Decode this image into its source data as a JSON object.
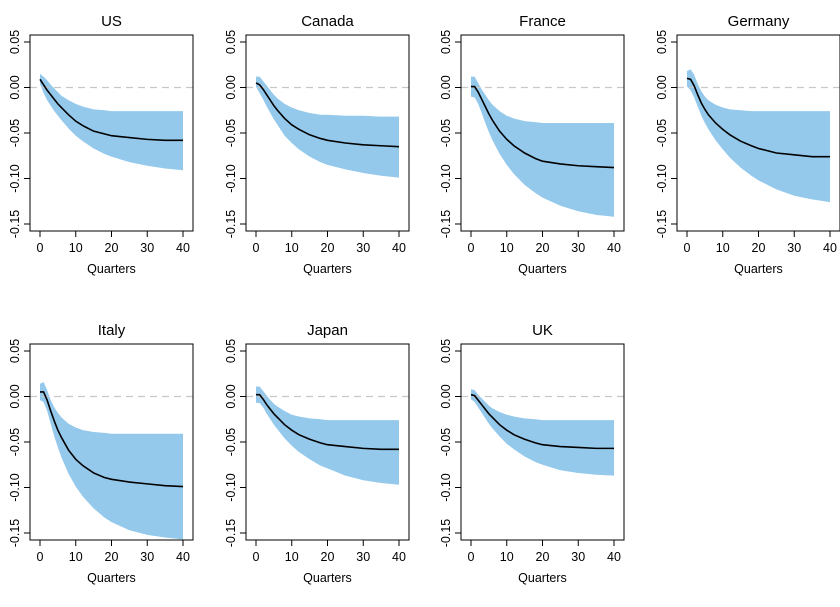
{
  "colors": {
    "band": "#94c9ec",
    "line": "#000000",
    "zero_line": "#c8c8c8",
    "frame": "#000000",
    "background": "#ffffff"
  },
  "chart_data": [
    {
      "type": "area",
      "title": "US",
      "xlabel": "Quarters",
      "ylabel": "",
      "xlim": [
        0,
        40
      ],
      "ylim": [
        -0.15,
        0.05
      ],
      "x_ticks": [
        "0",
        "10",
        "20",
        "30",
        "40"
      ],
      "y_ticks": [
        "-0.15",
        "-0.10",
        "-0.05",
        "0.00",
        "0.05"
      ],
      "zero_line": true,
      "x": [
        0,
        1,
        2,
        3,
        4,
        5,
        6,
        8,
        10,
        12,
        15,
        18,
        20,
        25,
        30,
        35,
        40
      ],
      "series": [
        {
          "role": "median",
          "values": [
            0.009,
            0.003,
            -0.003,
            -0.008,
            -0.013,
            -0.018,
            -0.022,
            -0.03,
            -0.037,
            -0.042,
            -0.048,
            -0.051,
            -0.053,
            -0.055,
            -0.057,
            -0.058,
            -0.058
          ]
        },
        {
          "role": "upper",
          "values": [
            0.015,
            0.012,
            0.008,
            0.003,
            -0.001,
            -0.005,
            -0.009,
            -0.014,
            -0.018,
            -0.021,
            -0.024,
            -0.025,
            -0.026,
            -0.026,
            -0.026,
            -0.026,
            -0.026
          ]
        },
        {
          "role": "lower",
          "values": [
            0.004,
            -0.006,
            -0.014,
            -0.02,
            -0.026,
            -0.031,
            -0.036,
            -0.045,
            -0.053,
            -0.059,
            -0.067,
            -0.073,
            -0.076,
            -0.082,
            -0.086,
            -0.089,
            -0.091
          ]
        }
      ]
    },
    {
      "type": "area",
      "title": "Canada",
      "xlabel": "Quarters",
      "ylabel": "",
      "xlim": [
        0,
        40
      ],
      "ylim": [
        -0.15,
        0.05
      ],
      "x_ticks": [
        "0",
        "10",
        "20",
        "30",
        "40"
      ],
      "y_ticks": [
        "-0.15",
        "-0.10",
        "-0.05",
        "0.00",
        "0.05"
      ],
      "zero_line": true,
      "x": [
        0,
        1,
        2,
        3,
        4,
        5,
        6,
        8,
        10,
        12,
        15,
        18,
        20,
        25,
        30,
        35,
        40
      ],
      "series": [
        {
          "role": "median",
          "values": [
            0.005,
            0.003,
            -0.002,
            -0.008,
            -0.014,
            -0.02,
            -0.025,
            -0.034,
            -0.041,
            -0.046,
            -0.052,
            -0.056,
            -0.058,
            -0.061,
            -0.063,
            -0.064,
            -0.065
          ]
        },
        {
          "role": "upper",
          "values": [
            0.012,
            0.012,
            0.007,
            0.002,
            -0.003,
            -0.008,
            -0.012,
            -0.018,
            -0.022,
            -0.025,
            -0.028,
            -0.03,
            -0.03,
            -0.031,
            -0.031,
            -0.032,
            -0.032
          ]
        },
        {
          "role": "lower",
          "values": [
            0.001,
            -0.006,
            -0.013,
            -0.021,
            -0.028,
            -0.035,
            -0.041,
            -0.053,
            -0.061,
            -0.068,
            -0.076,
            -0.082,
            -0.085,
            -0.09,
            -0.094,
            -0.097,
            -0.099
          ]
        }
      ]
    },
    {
      "type": "area",
      "title": "France",
      "xlabel": "Quarters",
      "ylabel": "",
      "xlim": [
        0,
        40
      ],
      "ylim": [
        -0.15,
        0.05
      ],
      "x_ticks": [
        "0",
        "10",
        "20",
        "30",
        "40"
      ],
      "y_ticks": [
        "-0.15",
        "-0.10",
        "-0.05",
        "0.00",
        "0.05"
      ],
      "zero_line": true,
      "x": [
        0,
        1,
        2,
        3,
        4,
        5,
        6,
        8,
        10,
        12,
        15,
        18,
        20,
        25,
        30,
        35,
        40
      ],
      "series": [
        {
          "role": "median",
          "values": [
            0.001,
            0.001,
            -0.005,
            -0.013,
            -0.021,
            -0.029,
            -0.036,
            -0.048,
            -0.057,
            -0.064,
            -0.072,
            -0.078,
            -0.081,
            -0.084,
            -0.086,
            -0.087,
            -0.088
          ]
        },
        {
          "role": "upper",
          "values": [
            0.012,
            0.012,
            0.005,
            -0.002,
            -0.008,
            -0.014,
            -0.019,
            -0.026,
            -0.031,
            -0.034,
            -0.037,
            -0.038,
            -0.039,
            -0.039,
            -0.039,
            -0.039,
            -0.039
          ]
        },
        {
          "role": "lower",
          "values": [
            -0.01,
            -0.011,
            -0.018,
            -0.028,
            -0.039,
            -0.049,
            -0.058,
            -0.073,
            -0.085,
            -0.095,
            -0.107,
            -0.116,
            -0.121,
            -0.13,
            -0.136,
            -0.14,
            -0.142
          ]
        }
      ]
    },
    {
      "type": "area",
      "title": "Germany",
      "xlabel": "Quarters",
      "ylabel": "",
      "xlim": [
        0,
        40
      ],
      "ylim": [
        -0.15,
        0.05
      ],
      "x_ticks": [
        "0",
        "10",
        "20",
        "30",
        "40"
      ],
      "y_ticks": [
        "-0.15",
        "-0.10",
        "-0.05",
        "0.00",
        "0.05"
      ],
      "zero_line": true,
      "x": [
        0,
        1,
        2,
        3,
        4,
        5,
        6,
        8,
        10,
        12,
        15,
        18,
        20,
        25,
        30,
        35,
        40
      ],
      "series": [
        {
          "role": "median",
          "values": [
            0.01,
            0.009,
            0.002,
            -0.008,
            -0.017,
            -0.024,
            -0.03,
            -0.039,
            -0.046,
            -0.052,
            -0.059,
            -0.064,
            -0.067,
            -0.072,
            -0.074,
            -0.076,
            -0.076
          ]
        },
        {
          "role": "upper",
          "values": [
            0.018,
            0.02,
            0.014,
            0.004,
            -0.004,
            -0.01,
            -0.014,
            -0.019,
            -0.022,
            -0.024,
            -0.025,
            -0.026,
            -0.026,
            -0.026,
            -0.026,
            -0.026,
            -0.026
          ]
        },
        {
          "role": "lower",
          "values": [
            0.001,
            -0.003,
            -0.011,
            -0.021,
            -0.031,
            -0.039,
            -0.046,
            -0.058,
            -0.068,
            -0.077,
            -0.088,
            -0.097,
            -0.102,
            -0.112,
            -0.119,
            -0.123,
            -0.126
          ]
        }
      ]
    },
    {
      "type": "area",
      "title": "Italy",
      "xlabel": "Quarters",
      "ylabel": "",
      "xlim": [
        0,
        40
      ],
      "ylim": [
        -0.15,
        0.05
      ],
      "x_ticks": [
        "0",
        "10",
        "20",
        "30",
        "40"
      ],
      "y_ticks": [
        "-0.15",
        "-0.10",
        "-0.05",
        "0.00",
        "0.05"
      ],
      "zero_line": true,
      "x": [
        0,
        1,
        2,
        3,
        4,
        5,
        6,
        8,
        10,
        12,
        15,
        18,
        20,
        25,
        30,
        35,
        40
      ],
      "series": [
        {
          "role": "median",
          "values": [
            0.005,
            0.005,
            -0.004,
            -0.016,
            -0.027,
            -0.037,
            -0.045,
            -0.059,
            -0.069,
            -0.076,
            -0.084,
            -0.089,
            -0.091,
            -0.094,
            -0.096,
            -0.098,
            -0.099
          ]
        },
        {
          "role": "upper",
          "values": [
            0.014,
            0.016,
            0.007,
            -0.004,
            -0.012,
            -0.018,
            -0.023,
            -0.03,
            -0.034,
            -0.037,
            -0.039,
            -0.04,
            -0.041,
            -0.041,
            -0.041,
            -0.041,
            -0.041
          ]
        },
        {
          "role": "lower",
          "values": [
            -0.004,
            -0.006,
            -0.016,
            -0.03,
            -0.044,
            -0.056,
            -0.067,
            -0.085,
            -0.099,
            -0.11,
            -0.123,
            -0.133,
            -0.138,
            -0.147,
            -0.152,
            -0.155,
            -0.157
          ]
        }
      ]
    },
    {
      "type": "area",
      "title": "Japan",
      "xlabel": "Quarters",
      "ylabel": "",
      "xlim": [
        0,
        40
      ],
      "ylim": [
        -0.15,
        0.05
      ],
      "x_ticks": [
        "0",
        "10",
        "20",
        "30",
        "40"
      ],
      "y_ticks": [
        "-0.15",
        "-0.10",
        "-0.05",
        "0.00",
        "0.05"
      ],
      "zero_line": true,
      "x": [
        0,
        1,
        2,
        3,
        4,
        5,
        6,
        8,
        10,
        12,
        15,
        18,
        20,
        25,
        30,
        35,
        40
      ],
      "series": [
        {
          "role": "median",
          "values": [
            0.002,
            0.002,
            -0.003,
            -0.009,
            -0.014,
            -0.019,
            -0.023,
            -0.031,
            -0.037,
            -0.042,
            -0.047,
            -0.051,
            -0.053,
            -0.055,
            -0.057,
            -0.058,
            -0.058
          ]
        },
        {
          "role": "upper",
          "values": [
            0.011,
            0.011,
            0.006,
            0.001,
            -0.004,
            -0.008,
            -0.011,
            -0.016,
            -0.02,
            -0.022,
            -0.024,
            -0.025,
            -0.026,
            -0.026,
            -0.026,
            -0.026,
            -0.026
          ]
        },
        {
          "role": "lower",
          "values": [
            -0.007,
            -0.007,
            -0.012,
            -0.019,
            -0.025,
            -0.031,
            -0.036,
            -0.046,
            -0.054,
            -0.061,
            -0.069,
            -0.076,
            -0.079,
            -0.087,
            -0.092,
            -0.095,
            -0.097
          ]
        }
      ]
    },
    {
      "type": "area",
      "title": "UK",
      "xlabel": "Quarters",
      "ylabel": "",
      "xlim": [
        0,
        40
      ],
      "ylim": [
        -0.15,
        0.05
      ],
      "x_ticks": [
        "0",
        "10",
        "20",
        "30",
        "40"
      ],
      "y_ticks": [
        "-0.15",
        "-0.10",
        "-0.05",
        "0.00",
        "0.05"
      ],
      "zero_line": true,
      "x": [
        0,
        1,
        2,
        3,
        4,
        5,
        6,
        8,
        10,
        12,
        15,
        18,
        20,
        25,
        30,
        35,
        40
      ],
      "series": [
        {
          "role": "median",
          "values": [
            0.002,
            0.001,
            -0.004,
            -0.009,
            -0.014,
            -0.019,
            -0.023,
            -0.031,
            -0.037,
            -0.042,
            -0.047,
            -0.051,
            -0.053,
            -0.055,
            -0.056,
            -0.057,
            -0.057
          ]
        },
        {
          "role": "upper",
          "values": [
            0.008,
            0.007,
            0.002,
            -0.002,
            -0.006,
            -0.01,
            -0.013,
            -0.017,
            -0.02,
            -0.022,
            -0.024,
            -0.025,
            -0.026,
            -0.026,
            -0.026,
            -0.026,
            -0.026
          ]
        },
        {
          "role": "lower",
          "values": [
            -0.003,
            -0.006,
            -0.012,
            -0.018,
            -0.024,
            -0.03,
            -0.035,
            -0.044,
            -0.052,
            -0.058,
            -0.066,
            -0.072,
            -0.075,
            -0.081,
            -0.084,
            -0.086,
            -0.087
          ]
        }
      ]
    }
  ]
}
